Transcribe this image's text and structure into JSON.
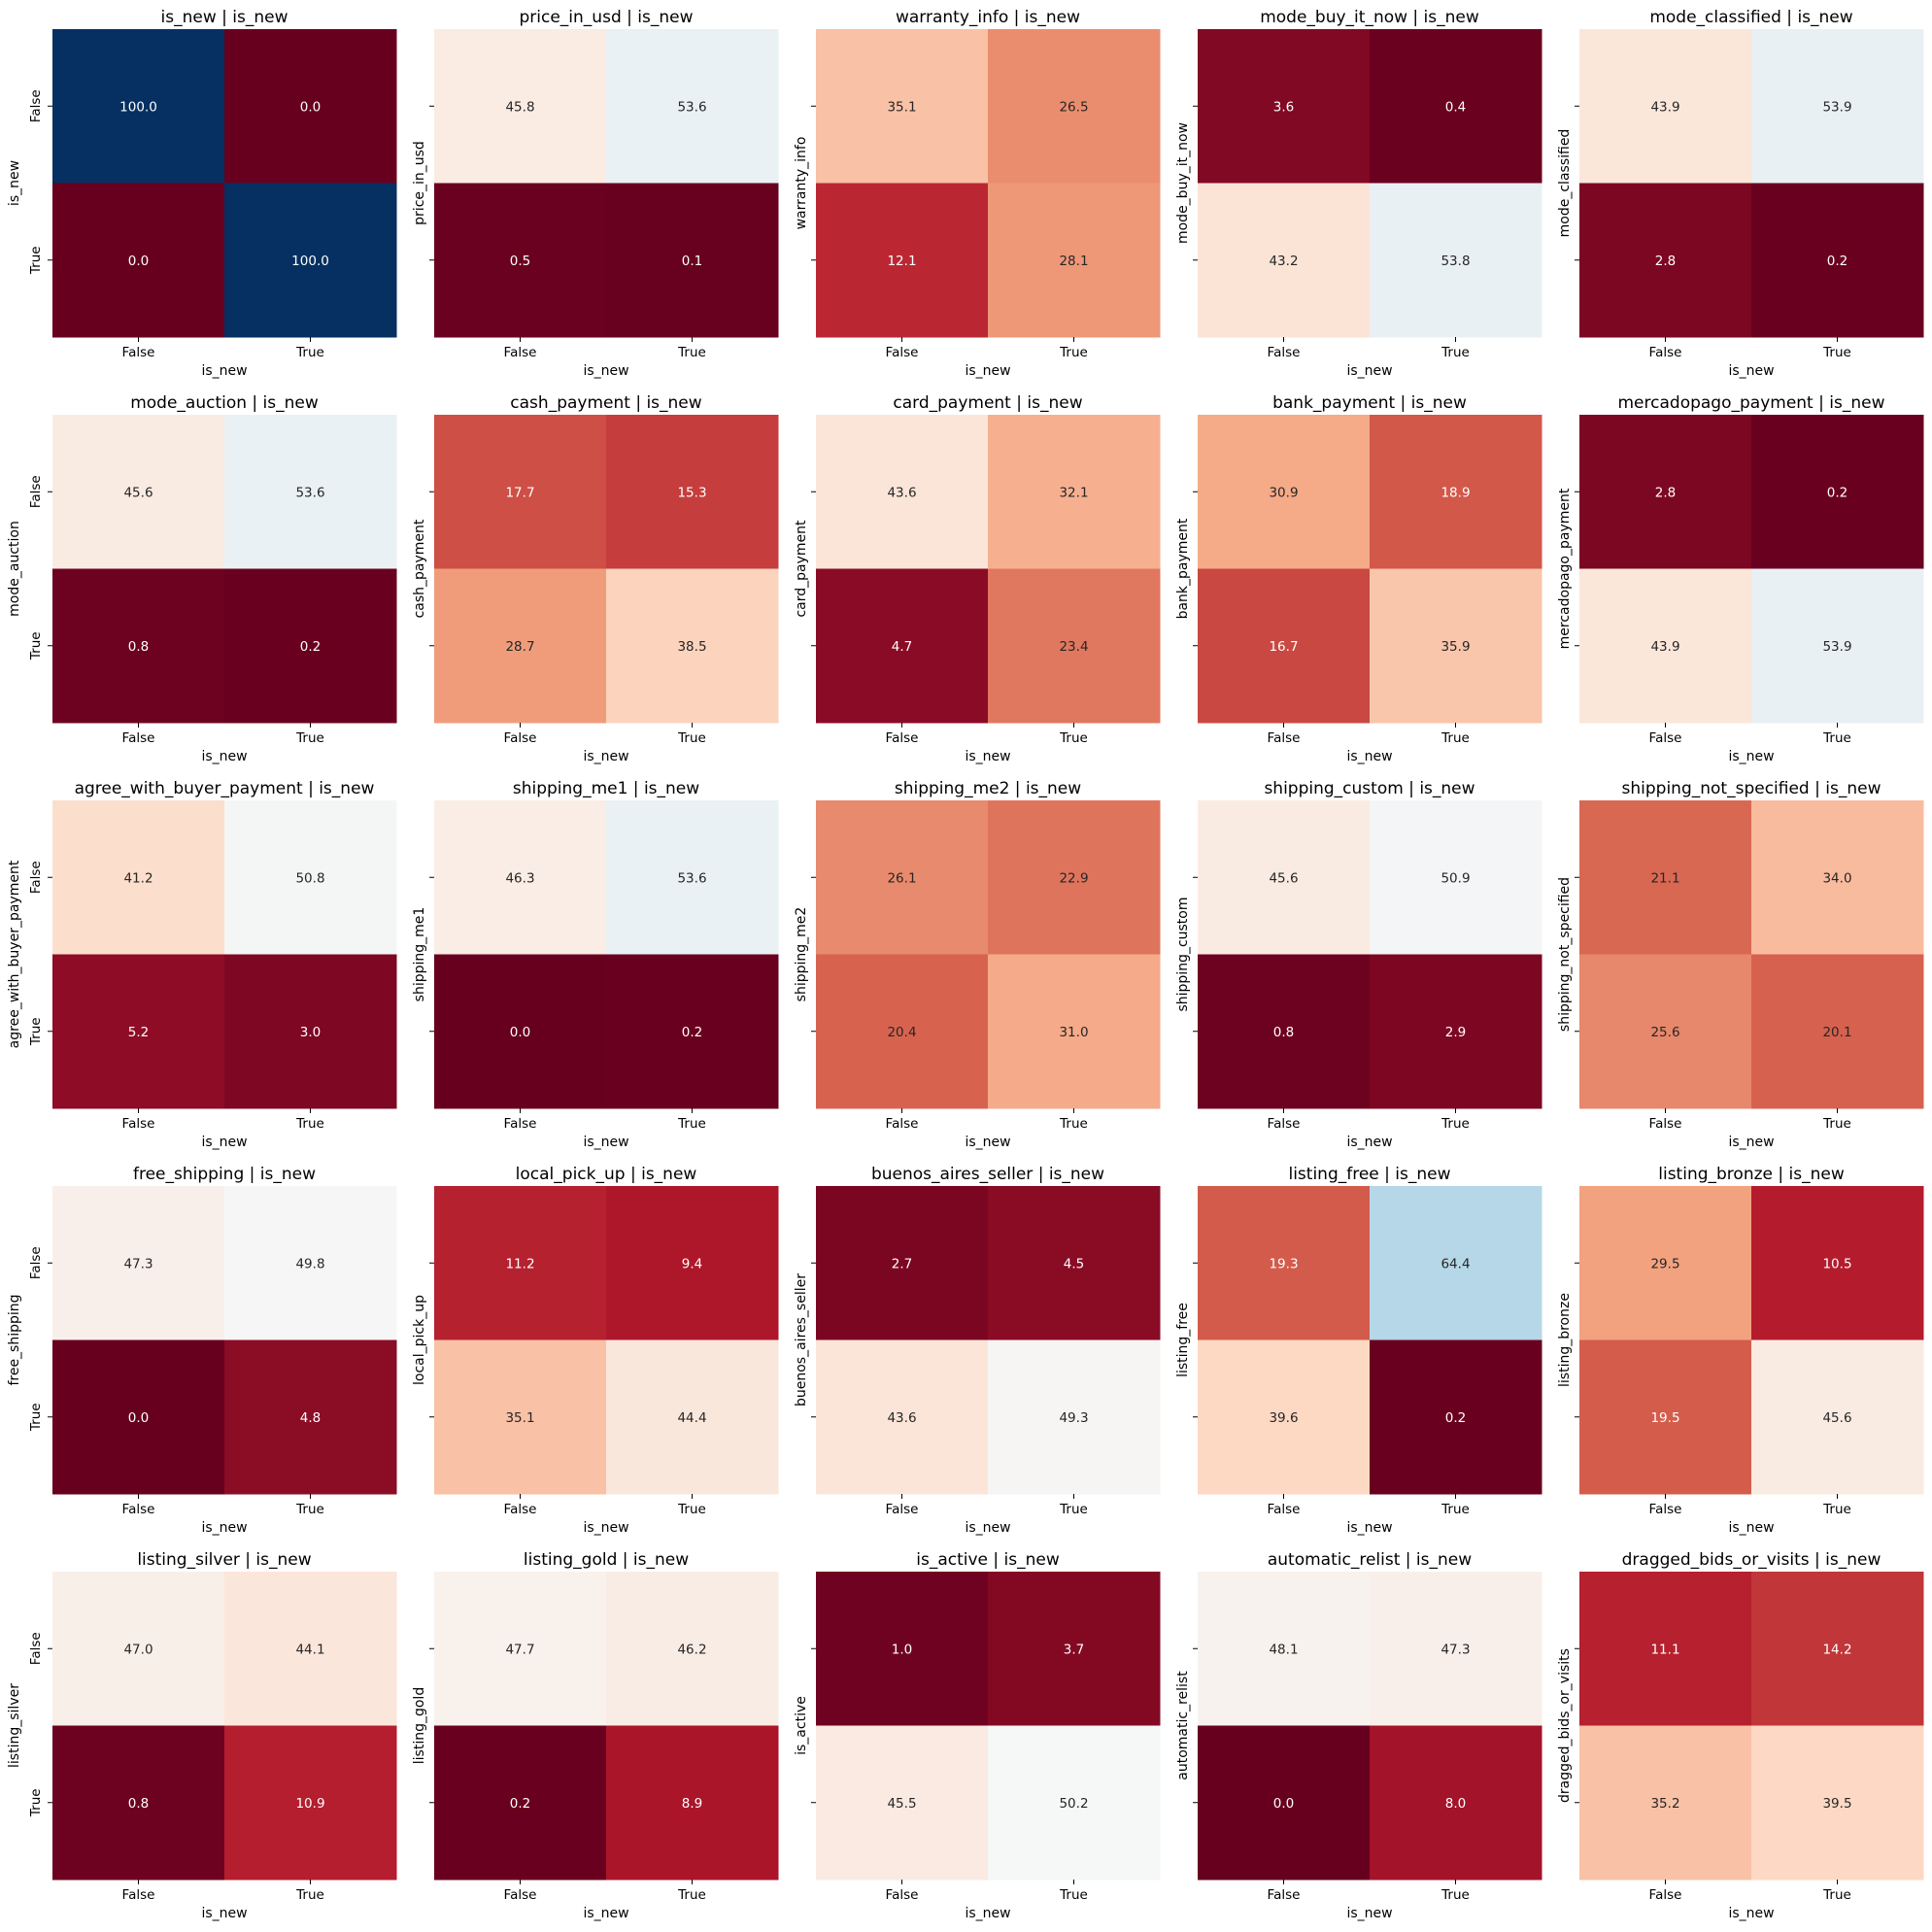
{
  "chart_data": [
    {
      "type": "heatmap",
      "title": "is_new | is_new",
      "xlabel": "is_new",
      "ylabel": "is_new",
      "x_categories": [
        "False",
        "True"
      ],
      "y_categories": [
        "False",
        "True"
      ],
      "values": [
        [
          100.0,
          0.0
        ],
        [
          0.0,
          100.0
        ]
      ]
    },
    {
      "type": "heatmap",
      "title": "price_in_usd | is_new",
      "xlabel": "is_new",
      "ylabel": "price_in_usd",
      "x_categories": [
        "False",
        "True"
      ],
      "y_categories": [
        "False",
        "True"
      ],
      "values": [
        [
          45.8,
          53.6
        ],
        [
          0.5,
          0.1
        ]
      ]
    },
    {
      "type": "heatmap",
      "title": "warranty_info | is_new",
      "xlabel": "is_new",
      "ylabel": "warranty_info",
      "x_categories": [
        "False",
        "True"
      ],
      "y_categories": [
        "False",
        "True"
      ],
      "values": [
        [
          35.1,
          26.5
        ],
        [
          12.1,
          28.1
        ]
      ]
    },
    {
      "type": "heatmap",
      "title": "mode_buy_it_now | is_new",
      "xlabel": "is_new",
      "ylabel": "mode_buy_it_now",
      "x_categories": [
        "False",
        "True"
      ],
      "y_categories": [
        "False",
        "True"
      ],
      "values": [
        [
          3.6,
          0.4
        ],
        [
          43.2,
          53.8
        ]
      ]
    },
    {
      "type": "heatmap",
      "title": "mode_classified | is_new",
      "xlabel": "is_new",
      "ylabel": "mode_classified",
      "x_categories": [
        "False",
        "True"
      ],
      "y_categories": [
        "False",
        "True"
      ],
      "values": [
        [
          43.9,
          53.9
        ],
        [
          2.8,
          0.2
        ]
      ]
    },
    {
      "type": "heatmap",
      "title": "mode_auction | is_new",
      "xlabel": "is_new",
      "ylabel": "mode_auction",
      "x_categories": [
        "False",
        "True"
      ],
      "y_categories": [
        "False",
        "True"
      ],
      "values": [
        [
          45.6,
          53.6
        ],
        [
          0.8,
          0.2
        ]
      ]
    },
    {
      "type": "heatmap",
      "title": "cash_payment | is_new",
      "xlabel": "is_new",
      "ylabel": "cash_payment",
      "x_categories": [
        "False",
        "True"
      ],
      "y_categories": [
        "False",
        "True"
      ],
      "values": [
        [
          17.7,
          15.3
        ],
        [
          28.7,
          38.5
        ]
      ]
    },
    {
      "type": "heatmap",
      "title": "card_payment | is_new",
      "xlabel": "is_new",
      "ylabel": "card_payment",
      "x_categories": [
        "False",
        "True"
      ],
      "y_categories": [
        "False",
        "True"
      ],
      "values": [
        [
          43.6,
          32.1
        ],
        [
          4.7,
          23.4
        ]
      ]
    },
    {
      "type": "heatmap",
      "title": "bank_payment | is_new",
      "xlabel": "is_new",
      "ylabel": "bank_payment",
      "x_categories": [
        "False",
        "True"
      ],
      "y_categories": [
        "False",
        "True"
      ],
      "values": [
        [
          30.9,
          18.9
        ],
        [
          16.7,
          35.9
        ]
      ]
    },
    {
      "type": "heatmap",
      "title": "mercadopago_payment | is_new",
      "xlabel": "is_new",
      "ylabel": "mercadopago_payment",
      "x_categories": [
        "False",
        "True"
      ],
      "y_categories": [
        "False",
        "True"
      ],
      "values": [
        [
          2.8,
          0.2
        ],
        [
          43.9,
          53.9
        ]
      ]
    },
    {
      "type": "heatmap",
      "title": "agree_with_buyer_payment | is_new",
      "xlabel": "is_new",
      "ylabel": "agree_with_buyer_payment",
      "x_categories": [
        "False",
        "True"
      ],
      "y_categories": [
        "False",
        "True"
      ],
      "values": [
        [
          41.2,
          50.8
        ],
        [
          5.2,
          3.0
        ]
      ]
    },
    {
      "type": "heatmap",
      "title": "shipping_me1 | is_new",
      "xlabel": "is_new",
      "ylabel": "shipping_me1",
      "x_categories": [
        "False",
        "True"
      ],
      "y_categories": [
        "False",
        "True"
      ],
      "values": [
        [
          46.3,
          53.6
        ],
        [
          0.0,
          0.2
        ]
      ]
    },
    {
      "type": "heatmap",
      "title": "shipping_me2 | is_new",
      "xlabel": "is_new",
      "ylabel": "shipping_me2",
      "x_categories": [
        "False",
        "True"
      ],
      "y_categories": [
        "False",
        "True"
      ],
      "values": [
        [
          26.1,
          22.9
        ],
        [
          20.4,
          31.0
        ]
      ]
    },
    {
      "type": "heatmap",
      "title": "shipping_custom | is_new",
      "xlabel": "is_new",
      "ylabel": "shipping_custom",
      "x_categories": [
        "False",
        "True"
      ],
      "y_categories": [
        "False",
        "True"
      ],
      "values": [
        [
          45.6,
          50.9
        ],
        [
          0.8,
          2.9
        ]
      ]
    },
    {
      "type": "heatmap",
      "title": "shipping_not_specified | is_new",
      "xlabel": "is_new",
      "ylabel": "shipping_not_specified",
      "x_categories": [
        "False",
        "True"
      ],
      "y_categories": [
        "False",
        "True"
      ],
      "values": [
        [
          21.1,
          34.0
        ],
        [
          25.6,
          20.1
        ]
      ]
    },
    {
      "type": "heatmap",
      "title": "free_shipping | is_new",
      "xlabel": "is_new",
      "ylabel": "free_shipping",
      "x_categories": [
        "False",
        "True"
      ],
      "y_categories": [
        "False",
        "True"
      ],
      "values": [
        [
          47.3,
          49.8
        ],
        [
          0.0,
          4.8
        ]
      ]
    },
    {
      "type": "heatmap",
      "title": "local_pick_up | is_new",
      "xlabel": "is_new",
      "ylabel": "local_pick_up",
      "x_categories": [
        "False",
        "True"
      ],
      "y_categories": [
        "False",
        "True"
      ],
      "values": [
        [
          11.2,
          9.4
        ],
        [
          35.1,
          44.4
        ]
      ]
    },
    {
      "type": "heatmap",
      "title": "buenos_aires_seller | is_new",
      "xlabel": "is_new",
      "ylabel": "buenos_aires_seller",
      "x_categories": [
        "False",
        "True"
      ],
      "y_categories": [
        "False",
        "True"
      ],
      "values": [
        [
          2.7,
          4.5
        ],
        [
          43.6,
          49.3
        ]
      ]
    },
    {
      "type": "heatmap",
      "title": "listing_free | is_new",
      "xlabel": "is_new",
      "ylabel": "listing_free",
      "x_categories": [
        "False",
        "True"
      ],
      "y_categories": [
        "False",
        "True"
      ],
      "values": [
        [
          19.3,
          64.4
        ],
        [
          39.6,
          0.2
        ]
      ]
    },
    {
      "type": "heatmap",
      "title": "listing_bronze | is_new",
      "xlabel": "is_new",
      "ylabel": "listing_bronze",
      "x_categories": [
        "False",
        "True"
      ],
      "y_categories": [
        "False",
        "True"
      ],
      "values": [
        [
          29.5,
          10.5
        ],
        [
          19.5,
          45.6
        ]
      ]
    },
    {
      "type": "heatmap",
      "title": "listing_silver | is_new",
      "xlabel": "is_new",
      "ylabel": "listing_silver",
      "x_categories": [
        "False",
        "True"
      ],
      "y_categories": [
        "False",
        "True"
      ],
      "values": [
        [
          47.0,
          44.1
        ],
        [
          0.8,
          10.9
        ]
      ]
    },
    {
      "type": "heatmap",
      "title": "listing_gold | is_new",
      "xlabel": "is_new",
      "ylabel": "listing_gold",
      "x_categories": [
        "False",
        "True"
      ],
      "y_categories": [
        "False",
        "True"
      ],
      "values": [
        [
          47.7,
          46.2
        ],
        [
          0.2,
          8.9
        ]
      ]
    },
    {
      "type": "heatmap",
      "title": "is_active | is_new",
      "xlabel": "is_new",
      "ylabel": "is_active",
      "x_categories": [
        "False",
        "True"
      ],
      "y_categories": [
        "False",
        "True"
      ],
      "values": [
        [
          1.0,
          3.7
        ],
        [
          45.5,
          50.2
        ]
      ]
    },
    {
      "type": "heatmap",
      "title": "automatic_relist | is_new",
      "xlabel": "is_new",
      "ylabel": "automatic_relist",
      "x_categories": [
        "False",
        "True"
      ],
      "y_categories": [
        "False",
        "True"
      ],
      "values": [
        [
          48.1,
          47.3
        ],
        [
          0.0,
          8.0
        ]
      ]
    },
    {
      "type": "heatmap",
      "title": "dragged_bids_or_visits | is_new",
      "xlabel": "is_new",
      "ylabel": "dragged_bids_or_visits",
      "x_categories": [
        "False",
        "True"
      ],
      "y_categories": [
        "False",
        "True"
      ],
      "values": [
        [
          11.1,
          14.2
        ],
        [
          35.2,
          39.5
        ]
      ]
    }
  ],
  "colormap": "RdBu",
  "value_range": [
    0,
    100
  ]
}
